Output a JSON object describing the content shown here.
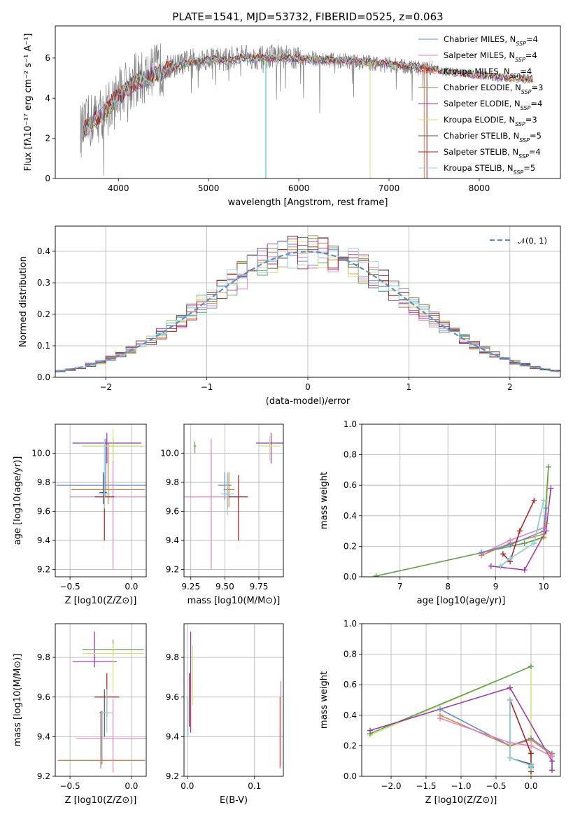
{
  "title": "PLATE=1541, MJD=53732, FIBERID=0525, z=0.063",
  "colors": [
    "#5b8bd0",
    "#e07fc3",
    "#e07b39",
    "#5a9e4b",
    "#9b30b0",
    "#cde86a",
    "#555555",
    "#b01818",
    "#8fd8e0"
  ],
  "legend": [
    "Chabrier MILES, N_SSP=4",
    "Salpeter MILES, N_SSP=4",
    "Kroupa MILES, N_SSP=4",
    "Chabrier ELODIE, N_SSP=3",
    "Salpeter ELODIE, N_SSP=4",
    "Kroupa ELODIE, N_SSP=3",
    "Chabrier STELIB, N_SSP=5",
    "Salpeter STELIB, N_SSP=4",
    "Kroupa STELIB, N_SSP=5"
  ],
  "chart_data": [
    {
      "type": "line",
      "id": "spectrum",
      "title": "PLATE=1541, MJD=53732, FIBERID=0525, z=0.063",
      "xlabel": "wavelength [Angstrom, rest frame]",
      "ylabel": "Flux [fλ10⁻¹⁷ erg cm⁻² s⁻¹ A⁻¹]",
      "xlim": [
        3300,
        8900
      ],
      "ylim": [
        0,
        7.6
      ],
      "xticks": [
        "4000",
        "5000",
        "6000",
        "7000",
        "8000"
      ],
      "yticks": [
        "0",
        "2",
        "4",
        "6"
      ],
      "grid": false,
      "legend_position": "top-right",
      "series": [
        {
          "name": "data",
          "color": "#808080",
          "x": [
            3600,
            3700,
            3800,
            3900,
            4000,
            4100,
            4200,
            4300,
            4400,
            4500,
            4600,
            4700,
            4800,
            4900,
            5000,
            5100,
            5200,
            5300,
            5400,
            5500,
            5600,
            5700,
            5800,
            5900,
            6000,
            6100,
            6200,
            6300,
            6400,
            6500,
            6600,
            6700,
            6800,
            6900,
            7000,
            7100,
            7200,
            7300,
            7400,
            7500
          ],
          "y": [
            2.4,
            2.9,
            3.2,
            3.6,
            4.2,
            4.6,
            4.9,
            5.0,
            5.3,
            5.5,
            5.6,
            5.7,
            5.9,
            5.9,
            6.0,
            6.0,
            5.9,
            6.1,
            6.1,
            6.0,
            6.0,
            6.1,
            6.1,
            6.0,
            6.0,
            6.0,
            5.95,
            5.9,
            5.9,
            5.85,
            5.8,
            5.8,
            5.75,
            5.7,
            5.65,
            5.6,
            5.55,
            5.5,
            5.5,
            5.45
          ]
        },
        {
          "name": "models",
          "color": "#7fd6d8",
          "x": [
            3600,
            3800,
            4000,
            4200,
            4400,
            4600,
            4800,
            5000,
            5200,
            5400,
            5600,
            5800,
            6000,
            6200,
            6400,
            6600,
            6800,
            7000,
            7200,
            7400,
            7600,
            7800,
            8000,
            8200,
            8400,
            8600
          ],
          "y": [
            2.4,
            3.1,
            4.1,
            4.8,
            5.2,
            5.5,
            5.8,
            5.9,
            5.9,
            6.0,
            6.0,
            6.0,
            5.95,
            5.9,
            5.9,
            5.85,
            5.8,
            5.7,
            5.6,
            5.5,
            5.35,
            5.25,
            5.15,
            5.05,
            5.0,
            4.95
          ]
        }
      ]
    },
    {
      "type": "histogram",
      "id": "residuals",
      "xlabel": "(data-model)/error",
      "ylabel": "Normed distribution",
      "xlim": [
        -2.5,
        2.5
      ],
      "ylim": [
        0,
        0.48
      ],
      "xticks": [
        "−2",
        "−1",
        "0",
        "1",
        "2"
      ],
      "yticks": [
        "0.0",
        "0.1",
        "0.2",
        "0.3",
        "0.4"
      ],
      "grid": true,
      "legend_position": "top-right",
      "reference_curve": {
        "name": "𝒩(0, 1)",
        "mean": 0,
        "sigma": 1,
        "color": "#5b8bd0",
        "style": "dashed"
      },
      "bin_width": 0.1
    },
    {
      "type": "errorbar",
      "id": "age-vs-Z",
      "xlabel": "Z [log10(Z/Z⊙)]",
      "ylabel": "age  [log10(age/yr)]",
      "xlim": [
        -0.62,
        0.12
      ],
      "ylim": [
        9.15,
        10.2
      ],
      "xticks": [
        "−0.5",
        "0.0"
      ],
      "yticks": [
        "9.2",
        "9.4",
        "9.6",
        "9.8",
        "10.0"
      ],
      "grid": true,
      "points": [
        {
          "x": -0.21,
          "xerr": 0.4,
          "y": 9.78,
          "yerr": [
            0.08,
            0.32
          ],
          "color": "#5b8bd0"
        },
        {
          "x": -0.15,
          "xerr": 0.35,
          "y": 9.7,
          "yerr": [
            0.5,
            0.4
          ],
          "color": "#e07fc3"
        },
        {
          "x": -0.19,
          "xerr": 0.3,
          "y": 9.75,
          "yerr": [
            0.1,
            0.32
          ],
          "color": "#e07b39"
        },
        {
          "x": -0.15,
          "xerr": 0.25,
          "y": 10.05,
          "yerr": [
            0.05,
            0.05
          ],
          "color": "#5a9e4b"
        },
        {
          "x": -0.2,
          "xerr": 0.28,
          "y": 10.07,
          "yerr": [
            0.14,
            0.07
          ],
          "color": "#9b30b0"
        },
        {
          "x": -0.15,
          "xerr": 0.25,
          "y": 10.05,
          "yerr": [
            0.1,
            0.12
          ],
          "color": "#cde86a"
        },
        {
          "x": -0.23,
          "xerr": 0.03,
          "y": 9.73,
          "yerr": [
            0.08,
            0.14
          ],
          "color": "#555555"
        },
        {
          "x": -0.22,
          "xerr": 0.08,
          "y": 9.7,
          "yerr": [
            0.3,
            0.15
          ],
          "color": "#b01818"
        },
        {
          "x": -0.22,
          "xerr": 0.05,
          "y": 9.72,
          "yerr": [
            0.1,
            0.38
          ],
          "color": "#8fd8e0"
        }
      ]
    },
    {
      "type": "errorbar",
      "id": "age-vs-mass",
      "xlabel": "mass [log10(M/M⊙)]",
      "ylabel": "",
      "xlim": [
        9.2,
        9.93
      ],
      "ylim": [
        9.15,
        10.2
      ],
      "xticks": [
        "9.25",
        "9.50",
        "9.75"
      ],
      "yticks": [
        "9.2",
        "9.4",
        "9.6",
        "9.8",
        "10.0"
      ],
      "grid": true,
      "points": [
        {
          "x": 9.28,
          "xerr": 0.01,
          "y": 10.05,
          "yerr": [
            0.05,
            0.03
          ],
          "color": "#5a9e4b"
        },
        {
          "x": 9.5,
          "xerr": 0.05,
          "y": 9.78,
          "yerr": [
            0.1,
            0.09
          ],
          "color": "#5b8bd0"
        },
        {
          "x": 9.4,
          "xerr": 0.2,
          "y": 9.7,
          "yerr": [
            0.5,
            0.4
          ],
          "color": "#e07fc3"
        },
        {
          "x": 9.53,
          "xerr": 0.04,
          "y": 9.75,
          "yerr": [
            0.12,
            0.12
          ],
          "color": "#e07b39"
        },
        {
          "x": 9.84,
          "xerr": 0.11,
          "y": 10.07,
          "yerr": [
            0.14,
            0.07
          ],
          "color": "#9b30b0"
        },
        {
          "x": 9.83,
          "xerr": 0.08,
          "y": 10.05,
          "yerr": [
            0.1,
            0.07
          ],
          "color": "#cde86a"
        },
        {
          "x": 9.52,
          "xerr": 0.02,
          "y": 9.72,
          "yerr": [
            0.1,
            0.14
          ],
          "color": "#555555"
        },
        {
          "x": 9.6,
          "xerr": 0.07,
          "y": 9.7,
          "yerr": [
            0.3,
            0.15
          ],
          "color": "#b01818"
        },
        {
          "x": 9.52,
          "xerr": 0.05,
          "y": 9.72,
          "yerr": [
            0.15,
            0.15
          ],
          "color": "#8fd8e0"
        }
      ]
    },
    {
      "type": "line",
      "id": "weight-vs-age",
      "xlabel": "age  [log10(age/yr)]",
      "ylabel": "mass weight",
      "xlim": [
        6.2,
        10.35
      ],
      "ylim": [
        0,
        1.0
      ],
      "xticks": [
        "7",
        "8",
        "9",
        "10"
      ],
      "yticks": [
        "0.0",
        "0.2",
        "0.4",
        "0.6",
        "0.8",
        "1.0"
      ],
      "grid": true,
      "series": [
        {
          "color": "#cde86a",
          "x": [
            6.5,
            9.6,
            10.0,
            10.05,
            10.1
          ],
          "y": [
            0.005,
            0.22,
            0.25,
            0.3,
            0.72
          ]
        },
        {
          "color": "#5a9e4b",
          "x": [
            6.5,
            9.6,
            10.0,
            10.1
          ],
          "y": [
            0.005,
            0.22,
            0.26,
            0.72
          ]
        },
        {
          "color": "#9b30b0",
          "x": [
            8.9,
            9.6,
            10.05,
            10.15
          ],
          "y": [
            0.07,
            0.045,
            0.3,
            0.58
          ]
        },
        {
          "color": "#e07b39",
          "x": [
            8.7,
            9.3,
            10.0,
            10.05
          ],
          "y": [
            0.14,
            0.22,
            0.28,
            0.35
          ]
        },
        {
          "color": "#e07fc3",
          "x": [
            8.7,
            9.3,
            10.0,
            10.05
          ],
          "y": [
            0.15,
            0.24,
            0.32,
            0.4
          ]
        },
        {
          "color": "#5b8bd0",
          "x": [
            8.7,
            9.3,
            10.0,
            10.05
          ],
          "y": [
            0.16,
            0.21,
            0.3,
            0.45
          ]
        },
        {
          "color": "#b01818",
          "x": [
            9.15,
            9.3,
            9.5,
            9.8
          ],
          "y": [
            0.15,
            0.1,
            0.3,
            0.5
          ]
        },
        {
          "color": "#555555",
          "x": [
            9.1,
            9.3,
            9.8,
            10.0
          ],
          "y": [
            0.07,
            0.12,
            0.22,
            0.5
          ]
        },
        {
          "color": "#8fd8e0",
          "x": [
            9.1,
            9.3,
            9.8,
            10.0
          ],
          "y": [
            0.07,
            0.12,
            0.22,
            0.5
          ]
        }
      ]
    },
    {
      "type": "errorbar",
      "id": "mass-vs-Z",
      "xlabel": "Z [log10(Z/Z⊙)]",
      "ylabel": "mass [log10(M/M⊙)]",
      "xlim": [
        -0.62,
        0.12
      ],
      "ylim": [
        9.2,
        9.97
      ],
      "xticks": [
        "−0.5",
        "0.0"
      ],
      "yticks": [
        "9.2",
        "9.4",
        "9.6",
        "9.8"
      ],
      "grid": true,
      "points": [
        {
          "x": -0.24,
          "xerr": 0.35,
          "y": 9.28,
          "yerr": [
            0.02,
            0.25
          ],
          "color": "#5b8bd0"
        },
        {
          "x": -0.15,
          "xerr": 0.3,
          "y": 9.39,
          "yerr": [
            0.17,
            0.2
          ],
          "color": "#e07fc3"
        },
        {
          "x": -0.25,
          "xerr": 0.35,
          "y": 9.28,
          "yerr": [
            0.04,
            0.25
          ],
          "color": "#e07b39"
        },
        {
          "x": -0.15,
          "xerr": 0.25,
          "y": 9.84,
          "yerr": [
            0.03,
            0.05
          ],
          "color": "#5a9e4b"
        },
        {
          "x": -0.3,
          "xerr": 0.18,
          "y": 9.78,
          "yerr": [
            0.03,
            0.15
          ],
          "color": "#9b30b0"
        },
        {
          "x": -0.15,
          "xerr": 0.25,
          "y": 9.82,
          "yerr": [
            0.2,
            0.05
          ],
          "color": "#cde86a"
        },
        {
          "x": -0.22,
          "xerr": 0.04,
          "y": 9.52,
          "yerr": [
            0.12,
            0.12
          ],
          "color": "#555555"
        },
        {
          "x": -0.2,
          "xerr": 0.1,
          "y": 9.6,
          "yerr": [
            0.1,
            0.12
          ],
          "color": "#b01818"
        },
        {
          "x": -0.2,
          "xerr": 0.05,
          "y": 9.52,
          "yerr": [
            0.1,
            0.12
          ],
          "color": "#8fd8e0"
        }
      ]
    },
    {
      "type": "errorbar",
      "id": "mass-vs-ebv",
      "xlabel": "E(B-V)",
      "ylabel": "",
      "xlim": [
        -0.005,
        0.143
      ],
      "ylim": [
        9.2,
        9.97
      ],
      "xticks": [
        "0.0",
        "0.1"
      ],
      "yticks": [
        "9.2",
        "9.4",
        "9.6",
        "9.8"
      ],
      "grid": true,
      "points": [
        {
          "x": 0.003,
          "xerr": 0.0,
          "y": 9.6,
          "yerr": [
            0.15,
            0.12
          ],
          "color": "#b01818"
        },
        {
          "x": 0.005,
          "xerr": 0.0,
          "y": 9.75,
          "yerr": [
            0.33,
            0.18
          ],
          "color": "#9b30b0"
        },
        {
          "x": 0.008,
          "xerr": 0.0,
          "y": 9.76,
          "yerr": [
            0.2,
            0.1
          ],
          "color": "#cde86a"
        },
        {
          "x": 0.001,
          "xerr": 0.0,
          "y": 9.5,
          "yerr": [
            0.1,
            0.1
          ],
          "color": "#8fd8e0"
        },
        {
          "x": 0.138,
          "xerr": 0.0,
          "y": 9.47,
          "yerr": [
            0.23,
            0.13
          ],
          "color": "#e07b39"
        },
        {
          "x": 0.139,
          "xerr": 0.0,
          "y": 9.5,
          "yerr": [
            0.25,
            0.18
          ],
          "color": "#e07fc3"
        }
      ]
    },
    {
      "type": "line",
      "id": "weight-vs-Z",
      "xlabel": "Z [log10(Z/Z⊙)]",
      "ylabel": "mass weight",
      "xlim": [
        -2.42,
        0.42
      ],
      "ylim": [
        0,
        1.0
      ],
      "xticks": [
        "−2.0",
        "−1.5",
        "−1.0",
        "−0.5",
        "0.0"
      ],
      "yticks": [
        "0.0",
        "0.2",
        "0.4",
        "0.6",
        "0.8",
        "1.0"
      ],
      "grid": true,
      "series": [
        {
          "color": "#cde86a",
          "x": [
            -2.3,
            0.0,
            0.0
          ],
          "y": [
            0.27,
            0.72,
            0.0
          ]
        },
        {
          "color": "#5a9e4b",
          "x": [
            -2.3,
            0.0
          ],
          "y": [
            0.28,
            0.72
          ]
        },
        {
          "color": "#9b30b0",
          "x": [
            -2.3,
            -0.3,
            0.3,
            0.3
          ],
          "y": [
            0.3,
            0.58,
            0.1,
            0.04
          ]
        },
        {
          "color": "#5b8bd0",
          "x": [
            -1.3,
            -0.3,
            0.0,
            0.3
          ],
          "y": [
            0.44,
            0.2,
            0.25,
            0.15
          ]
        },
        {
          "color": "#e07b39",
          "x": [
            -1.3,
            -0.3,
            0.0,
            0.3
          ],
          "y": [
            0.4,
            0.2,
            0.24,
            0.14
          ]
        },
        {
          "color": "#e07fc3",
          "x": [
            -1.3,
            -0.3,
            0.0,
            0.3
          ],
          "y": [
            0.38,
            0.22,
            0.2,
            0.13
          ]
        },
        {
          "color": "#b01818",
          "x": [
            -0.3,
            0.0,
            0.0
          ],
          "y": [
            0.5,
            0.15,
            0.03
          ]
        },
        {
          "color": "#555555",
          "x": [
            -0.3,
            -0.3,
            0.0,
            0.0
          ],
          "y": [
            0.5,
            0.12,
            0.08,
            0.06
          ]
        },
        {
          "color": "#8fd8e0",
          "x": [
            -0.3,
            -0.3,
            0.0,
            0.0
          ],
          "y": [
            0.5,
            0.12,
            0.07,
            0.05
          ]
        }
      ]
    }
  ]
}
